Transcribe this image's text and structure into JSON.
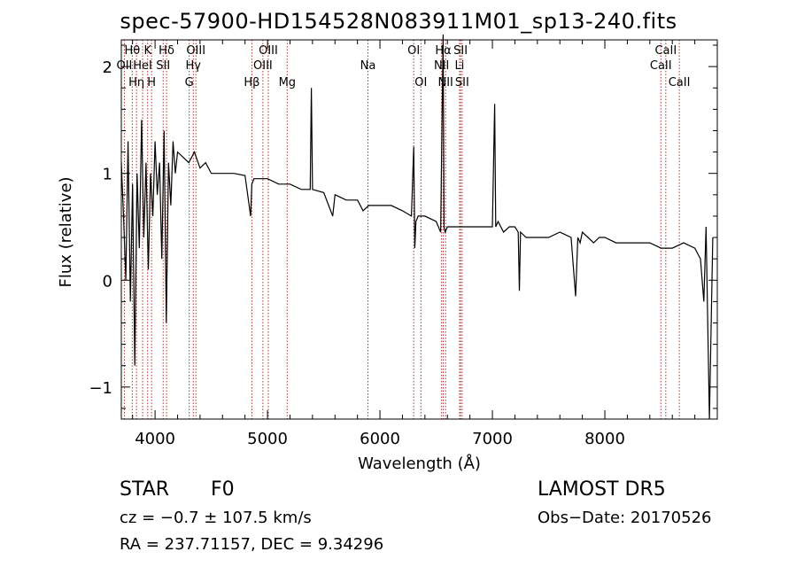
{
  "chart_data": {
    "type": "line",
    "title": "spec-57900-HD154528N083911M01_sp13-240.fits",
    "xlabel": "Wavelength (Å)",
    "ylabel": "Flux (relative)",
    "xlim": [
      3700,
      9000
    ],
    "ylim": [
      -1.3,
      2.25
    ],
    "xticks": [
      4000,
      5000,
      6000,
      7000,
      8000
    ],
    "yticks": [
      -1,
      0,
      1,
      2
    ],
    "series": [
      {
        "color": "#000000",
        "x": [
          3700,
          3720,
          3740,
          3760,
          3780,
          3800,
          3820,
          3840,
          3860,
          3880,
          3900,
          3920,
          3940,
          3960,
          3980,
          4000,
          4020,
          4040,
          4060,
          4080,
          4100,
          4120,
          4140,
          4160,
          4180,
          4200,
          4250,
          4300,
          4350,
          4400,
          4450,
          4500,
          4600,
          4700,
          4800,
          4850,
          4861,
          4880,
          4900,
          5000,
          5100,
          5200,
          5300,
          5380,
          5390,
          5400,
          5500,
          5580,
          5600,
          5700,
          5800,
          5850,
          5900,
          6000,
          6100,
          6200,
          6280,
          6300,
          6310,
          6320,
          6340,
          6400,
          6500,
          6540,
          6562,
          6570,
          6580,
          6600,
          6650,
          6700,
          6750,
          6800,
          6900,
          7000,
          7020,
          7030,
          7050,
          7100,
          7150,
          7200,
          7230,
          7240,
          7250,
          7300,
          7400,
          7500,
          7600,
          7700,
          7740,
          7760,
          7780,
          7800,
          7850,
          7900,
          7950,
          8000,
          8100,
          8200,
          8300,
          8400,
          8500,
          8550,
          8600,
          8700,
          8800,
          8850,
          8880,
          8900,
          8930,
          8960
        ],
        "y": [
          1.1,
          0.6,
          0.0,
          1.3,
          -0.2,
          0.9,
          -0.8,
          1.0,
          0.3,
          1.5,
          0.4,
          1.1,
          0.1,
          1.0,
          0.6,
          1.3,
          0.8,
          1.1,
          0.2,
          1.4,
          -0.4,
          1.1,
          0.7,
          1.3,
          1.0,
          1.2,
          1.15,
          1.1,
          1.2,
          1.05,
          1.1,
          1.0,
          1.0,
          1.0,
          0.98,
          0.6,
          0.9,
          0.95,
          0.95,
          0.95,
          0.9,
          0.9,
          0.85,
          0.85,
          1.8,
          0.85,
          0.82,
          0.6,
          0.8,
          0.75,
          0.75,
          0.65,
          0.7,
          0.7,
          0.7,
          0.65,
          0.6,
          1.25,
          0.3,
          0.55,
          0.6,
          0.6,
          0.55,
          0.45,
          2.3,
          0.5,
          0.45,
          0.5,
          0.5,
          0.5,
          0.5,
          0.5,
          0.5,
          0.5,
          1.65,
          0.5,
          0.55,
          0.45,
          0.5,
          0.5,
          0.45,
          -0.1,
          0.45,
          0.4,
          0.4,
          0.4,
          0.45,
          0.4,
          -0.15,
          0.4,
          0.35,
          0.45,
          0.4,
          0.35,
          0.4,
          0.4,
          0.35,
          0.35,
          0.35,
          0.35,
          0.3,
          0.3,
          0.3,
          0.35,
          0.3,
          0.2,
          -0.2,
          0.5,
          -1.3,
          0.4
        ]
      }
    ],
    "lines": [
      {
        "name": "Hθ",
        "x": 3797,
        "row": 1
      },
      {
        "name": "OII",
        "x": 3727,
        "row": 2
      },
      {
        "name": "Hη",
        "x": 3835,
        "row": 3
      },
      {
        "name": "HeI",
        "x": 3889,
        "row": 2
      },
      {
        "name": "K",
        "x": 3934,
        "row": 1
      },
      {
        "name": "H",
        "x": 3969,
        "row": 3
      },
      {
        "name": "Hδ",
        "x": 4102,
        "row": 1
      },
      {
        "name": "SII",
        "x": 4072,
        "row": 2
      },
      {
        "name": "OIII",
        "x": 4363,
        "row": 1
      },
      {
        "name": "Hγ",
        "x": 4340,
        "row": 2
      },
      {
        "name": "G",
        "x": 4304,
        "row": 3
      },
      {
        "name": "Hβ",
        "x": 4861,
        "row": 3
      },
      {
        "name": "OIII",
        "x": 5007,
        "row": 1
      },
      {
        "name": "OIII",
        "x": 4959,
        "row": 2
      },
      {
        "name": "Mg",
        "x": 5175,
        "row": 3
      },
      {
        "name": "Na",
        "x": 5893,
        "row": 2
      },
      {
        "name": "OI",
        "x": 6300,
        "row": 1
      },
      {
        "name": "OI",
        "x": 6364,
        "row": 3
      },
      {
        "name": "Hα",
        "x": 6563,
        "row": 1
      },
      {
        "name": "NII",
        "x": 6548,
        "row": 2
      },
      {
        "name": "NII",
        "x": 6584,
        "row": 3
      },
      {
        "name": "SII",
        "x": 6717,
        "row": 1
      },
      {
        "name": "Li",
        "x": 6708,
        "row": 2
      },
      {
        "name": "SII",
        "x": 6731,
        "row": 3
      },
      {
        "name": "CaII",
        "x": 8542,
        "row": 1
      },
      {
        "name": "CaII",
        "x": 8498,
        "row": 2
      },
      {
        "name": "CaII",
        "x": 8662,
        "row": 3
      }
    ]
  },
  "info": {
    "object": "STAR",
    "subclass": "F0",
    "survey": "LAMOST DR5",
    "cz": "cz = −0.7 ± 107.5 km/s",
    "obs_date": "Obs−Date: 20170526",
    "coords": "RA = 237.71157, DEC =   9.34296"
  }
}
